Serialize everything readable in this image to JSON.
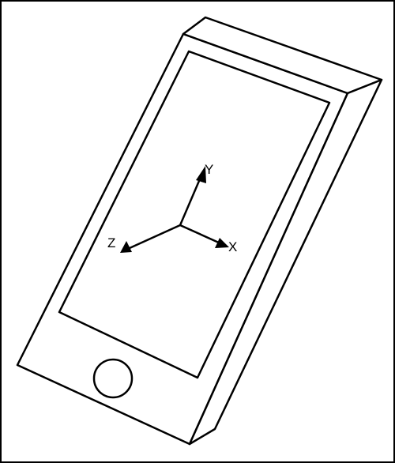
{
  "figure": {
    "subject": "phone-device-axes",
    "line_color": "#000000",
    "background_color": "#ffffff"
  },
  "axes": {
    "x_label": "X",
    "y_label": "Y",
    "z_label": "Z"
  },
  "device": {
    "home_button": "circle-button-icon"
  }
}
